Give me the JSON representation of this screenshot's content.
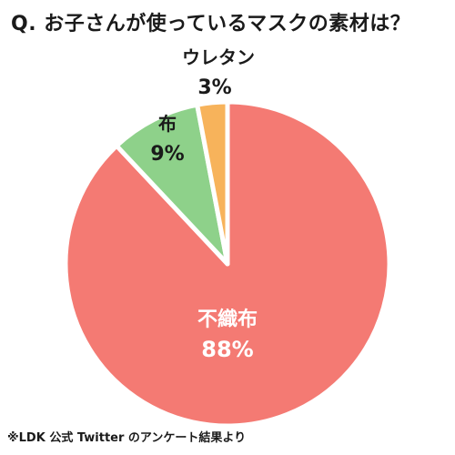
{
  "header": {
    "title": "Q. お子さんが使っているマスクの素材は？"
  },
  "chart_data": {
    "type": "pie",
    "title": "Q. お子さんが使っているマスクの素材は？",
    "start_angle_deg": 0,
    "direction": "clockwise",
    "slices": [
      {
        "label": "不織布",
        "value": 88,
        "value_text": "88%",
        "color": "#f47a73",
        "label_placement": "inside"
      },
      {
        "label": "布",
        "value": 9,
        "value_text": "9%",
        "color": "#8ed18a",
        "label_placement": "inside"
      },
      {
        "label": "ウレタン",
        "value": 3,
        "value_text": "3%",
        "color": "#f7b35b",
        "label_placement": "outside"
      }
    ],
    "annotation": "※LDK 公式 Twitter のアンケート結果より"
  },
  "footer": {
    "note": "※LDK 公式 Twitter のアンケート結果より"
  }
}
